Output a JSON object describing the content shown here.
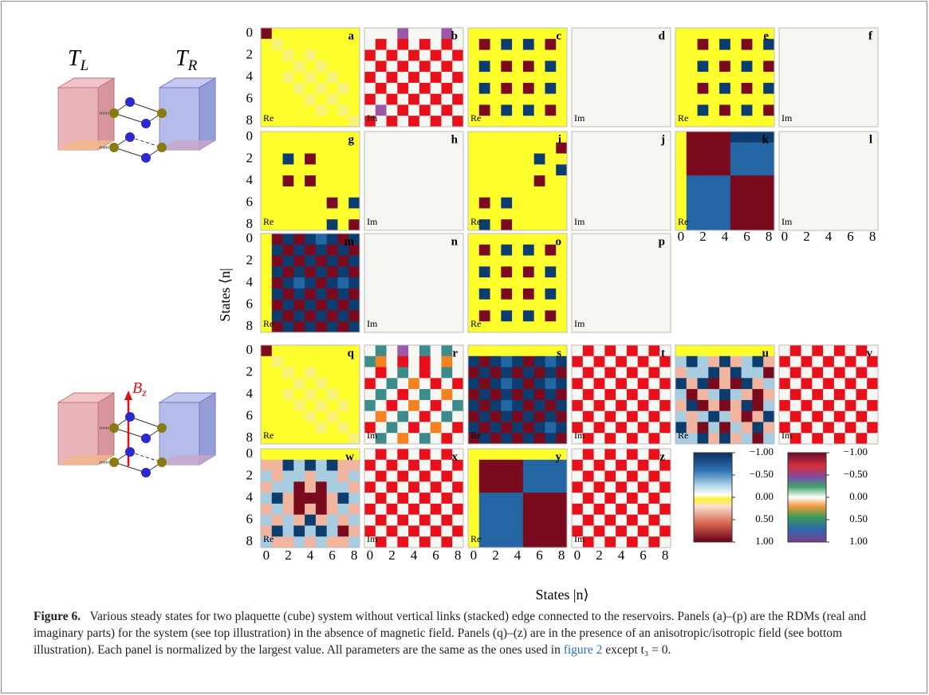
{
  "ticks": [
    0,
    2,
    4,
    6,
    8
  ],
  "ylabel": "States ⟨n|",
  "xlabel": "States |n⟩",
  "illustrations": {
    "left": {
      "main": "T",
      "sub": "L"
    },
    "right": {
      "main": "T",
      "sub": "R"
    },
    "field": {
      "main": "B",
      "sub": "z"
    }
  },
  "panels": [
    {
      "letter": "a",
      "part": "Re",
      "cells": [
        "RYYYYYYYY",
        "YyYYYYYYY",
        "YYyYyYYYY",
        "YYYyYyYYY",
        "YYyYyYyYY",
        "YYYyYyYyY",
        "YYYYyYyYY",
        "YYYYYyYyY",
        "YYYYYYYYy"
      ]
    },
    {
      "letter": "b",
      "part": "Im",
      "cells": [
        "WWWpWWWpW",
        "WrWrWrWrW",
        "rWrWrWrWr",
        "WrWrWrWrW",
        "rWrWrWrWr",
        "WrWrWrWrW",
        "rWrWrWrWr",
        "WpWrWrWrW",
        "rWrWrWrWr"
      ]
    },
    {
      "letter": "c",
      "part": "Re",
      "cells": [
        "YYYYYYYYY",
        "YRYBYBYRY",
        "YYYYYYYYY",
        "YBYRYRYBY",
        "YYYYYYYYY",
        "YBYRYRYBY",
        "YYYYYYYYY",
        "YRYBYBYRY",
        "YYYYYYYYY"
      ]
    },
    {
      "letter": "d",
      "part": "Im",
      "cells": [
        "WWWWWWWWW",
        "WWWWWWWWW",
        "WWWWWWWWW",
        "WWWWWWWWW",
        "WWWWWWWWW",
        "WWWWWWWWW",
        "WWWWWWWWW",
        "WWWWWWWWW",
        "WWWWWWWWW"
      ]
    },
    {
      "letter": "e",
      "part": "Re",
      "cells": [
        "YYYYYYYYY",
        "YYRYBYRYB",
        "YYYYYYYYY",
        "YYBYRYBYR",
        "YYYYYYYYY",
        "YYRYBYRYB",
        "YYYYYYYYY",
        "YYBYRYBYR",
        "YYYYYYYYY"
      ]
    },
    {
      "letter": "f",
      "part": "Im",
      "cells": [
        "WWWWWWWWW",
        "WWWWWWWWW",
        "WWWWWWWWW",
        "WWWWWWWWW",
        "WWWWWWWWW",
        "WWWWWWWWW",
        "WWWWWWWWW",
        "WWWWWWWWW",
        "WWWWWWWWW"
      ]
    },
    {
      "letter": "g",
      "part": "Re",
      "cells": [
        "YYYYYYYYY",
        "YYYYYYYYY",
        "YYBYRYYYY",
        "YYYYYYYYY",
        "YYRYRYYYY",
        "YYYYYYYYY",
        "YYYYYYRYB",
        "YYYYYYYYY",
        "YYYYYYBYR"
      ]
    },
    {
      "letter": "h",
      "part": "Im",
      "cells": [
        "WWWWWWWWW",
        "WWWWWWWWW",
        "WWWWWWWWW",
        "WWWWWWWWW",
        "WWWWWWWWW",
        "WWWWWWWWW",
        "WWWWWWWWW",
        "WWWWWWWWW",
        "WWWWWWWWW"
      ]
    },
    {
      "letter": "i",
      "part": "Re",
      "cells": [
        "YYYYYYYYY",
        "YYYYYYYYR",
        "YYYYYYBYY",
        "YYYYYYYYB",
        "YYYYYYRYY",
        "YYYYYYYYY",
        "YRYBYYYYY",
        "YYYYYYYYY",
        "YBYRYYYYY"
      ]
    },
    {
      "letter": "j",
      "part": "Im",
      "cells": [
        "WWWWWWWWW",
        "WWWWWWWWW",
        "WWWWWWWWW",
        "WWWWWWWWW",
        "WWWWWWWWW",
        "WWWWWWWWW",
        "WWWWWWWWW",
        "WWWWWWWWW",
        "WWWWWWWWW"
      ]
    },
    {
      "letter": "k",
      "part": "Re",
      "cells": [
        "YRRRRBBBB",
        "YRRRRmmmm",
        "YRRRRmmmm",
        "YRRRRmmmm",
        "YmmmmRRRR",
        "YmmmmRRRR",
        "YmmmmRRRR",
        "YmmmmRRRR",
        "YmmmmRRRR"
      ]
    },
    {
      "letter": "l",
      "part": "Im",
      "cells": [
        "WWWWWWWWW",
        "WWWWWWWWW",
        "WWWWWWWWW",
        "WWWWWWWWW",
        "WWWWWWWWW",
        "WWWWWWWWW",
        "WWWWWWWWW",
        "WWWWWWWWW",
        "WWWWWWWWW"
      ]
    },
    {
      "letter": "m",
      "part": "Re",
      "cells": [
        "YRBRBmBRB",
        "YBRBRBRBR",
        "YRBRBRBRB",
        "YBRBRBRBR",
        "YRBmBRBmB",
        "YBRBRBRBR",
        "YRBRBRBRB",
        "YBRBRBRBR",
        "YRBRBRBRB"
      ]
    },
    {
      "letter": "n",
      "part": "Im",
      "cells": [
        "WWWWWWWWW",
        "WWWWWWWWW",
        "WWWWWWWWW",
        "WWWWWWWWW",
        "WWWWWWWWW",
        "WWWWWWWWW",
        "WWWWWWWWW",
        "WWWWWWWWW",
        "WWWWWWWWW"
      ]
    },
    {
      "letter": "o",
      "part": "Re",
      "cells": [
        "YYYYYYYYY",
        "YRYBYBYRY",
        "YYYYYYYYY",
        "YBYRYRYBY",
        "YYYYYYYYY",
        "YBYRYRYBY",
        "YYYYYYYYY",
        "YRYBYBYRY",
        "YYYYYYYYY"
      ]
    },
    {
      "letter": "p",
      "part": "Im",
      "cells": [
        "WWWWWWWWW",
        "WWWWWWWWW",
        "WWWWWWWWW",
        "WWWWWWWWW",
        "WWWWWWWWW",
        "WWWWWWWWW",
        "WWWWWWWWW",
        "WWWWWWWWW",
        "WWWWWWWWW"
      ]
    },
    {
      "letter": "q",
      "part": "Re",
      "cells": [
        "RYYYYYYYY",
        "YyYYYYYYY",
        "YYyYyYYYY",
        "YYYyYyYYY",
        "YYyYyYyYY",
        "YYYyYyYyY",
        "YYYYyYyYY",
        "YYYYYyYyY",
        "YYYYYYYYy"
      ]
    },
    {
      "letter": "r",
      "part": "Im",
      "cells": [
        "WtWpWtWtW",
        "toWrWrWoW",
        "WrWtWrWtW",
        "rWtWoWrWr",
        "WtWrWtWoW",
        "tWrWoWrWt",
        "WoWtWrWtW",
        "rWtWrWoWr",
        "WtWoWtWrW"
      ]
    },
    {
      "letter": "s",
      "part": "Re",
      "cells": [
        "YYYYYYYYY",
        "BRBmBRBmB",
        "RBRBRBRBR",
        "BRBmBRBmB",
        "RBRBRBRBR",
        "BRBmBRBRB",
        "RBRBRBRBR",
        "BRBRBRBmB",
        "RBRBRBRBR"
      ]
    },
    {
      "letter": "t",
      "part": "Im",
      "cells": [
        "WrWrWrWrW",
        "rWrWrWrWr",
        "WrWrWrWrW",
        "rWrWrWrWr",
        "WrWrWrWrW",
        "rWrWrWrWr",
        "WrWrWrWrW",
        "rWrWrWrWr",
        "WrWrWrWrW"
      ]
    },
    {
      "letter": "u",
      "part": "Re",
      "cells": [
        "YYYYYYYYY",
        "lBlsBslBs",
        "sllBsBllR",
        "BsBRsRBsl",
        "lRslBlsRs",
        "sBRsRsBRl",
        "lslBlsRsB",
        "BsRlRlsBs",
        "llBsBslRl"
      ]
    },
    {
      "letter": "v",
      "part": "Im",
      "cells": [
        "WrWrWrWrW",
        "rWrWrWrWr",
        "WrWrWrWrW",
        "rWrWrWrWr",
        "WrWrWrWrW",
        "rWrWrWrWr",
        "WrWrWrWrW",
        "rWrWrWrWr",
        "WrWrWrWrW"
      ]
    },
    {
      "letter": "w",
      "part": "Re",
      "cells": [
        "YYYYYYYYY",
        "ssBlBlBss",
        "lsllsllsl",
        "sllRsRlls",
        "lBsRRRsBl",
        "slsRsRsls",
        "lslsBslsl",
        "sBlBlBlRs",
        "lsslslssl"
      ]
    },
    {
      "letter": "x",
      "part": "Im",
      "cells": [
        "WrWrWrWrW",
        "rWrWrWrWr",
        "WrWrWrWrW",
        "rWrWrWrWr",
        "WrWrWrWrW",
        "rWrWrWrWr",
        "WrWrWrWrW",
        "rWrWrWrWr",
        "WrWrWrWrW"
      ]
    },
    {
      "letter": "y",
      "part": "Re",
      "cells": [
        "YYYYYYYYY",
        "YRRRRmmmm",
        "YRRRRmmmm",
        "YRRRRmmmm",
        "YmmmmRRRR",
        "YmmmmRRRR",
        "YmmmmRRRR",
        "YmmmmRRRR",
        "YmmmmRRRR"
      ]
    },
    {
      "letter": "z",
      "part": "Im",
      "cells": [
        "WrWrWrWrW",
        "rWrWrWrWr",
        "WrWrWrWrW",
        "rWrWrWrWr",
        "WrWrWrWrW",
        "rWrWrWrWr",
        "WrWrWrWrW",
        "rWrWrWrWr",
        "WrWrWrWrW"
      ]
    }
  ],
  "colorbar_ticks": [
    {
      "value": -1,
      "label": "−1.00"
    },
    {
      "value": -0.5,
      "label": "−0.50"
    },
    {
      "value": 0,
      "label": "0.00"
    },
    {
      "value": 0.5,
      "label": "0.50"
    },
    {
      "value": 1,
      "label": "1.00"
    }
  ],
  "colorbar_lim": [
    -1,
    1
  ],
  "caption": {
    "label": "Figure 6.",
    "text": "Various steady states for two plaquette (cube) system without vertical links (stacked) edge connected to the reservoirs. Panels (a)–(p) are the RDMs (real and imaginary parts) for the system (see top illustration) in the absence of magnetic field. Panels (q)–(z) are in the presence of an anisotropic/isotropic field (see bottom illustration). Each panel is normalized by the largest value. All parameters are the same as the ones used in",
    "link": "figure 2",
    "tail": "except t₃ = 0."
  }
}
